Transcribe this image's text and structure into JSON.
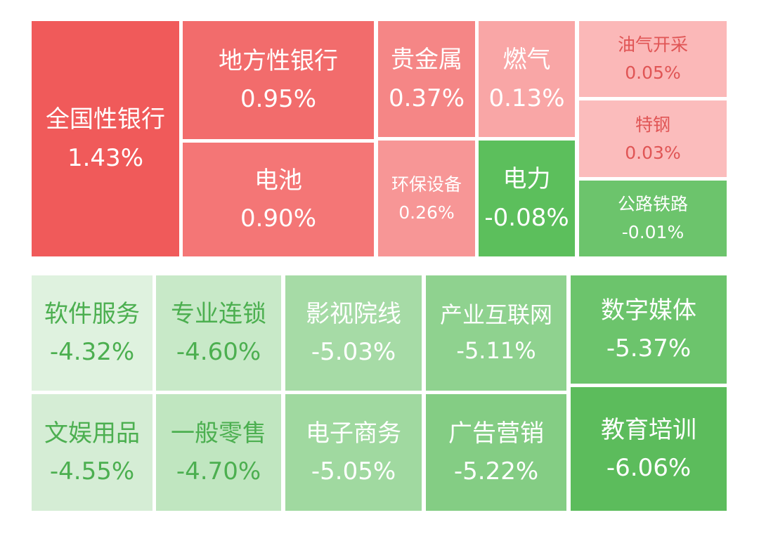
{
  "tiles": [
    {
      "name": "全国性银行",
      "change": "1.43%"
    },
    {
      "name": "地方性银行",
      "change": "0.95%"
    },
    {
      "name": "电池",
      "change": "0.90%"
    },
    {
      "name": "贵金属",
      "change": "0.37%"
    },
    {
      "name": "环保设备",
      "change": "0.26%"
    },
    {
      "name": "燃气",
      "change": "0.13%"
    },
    {
      "name": "电力",
      "change": "-0.08%"
    },
    {
      "name": "油气开采",
      "change": "0.05%"
    },
    {
      "name": "特钢",
      "change": "0.03%"
    },
    {
      "name": "公路铁路",
      "change": "-0.01%"
    },
    {
      "name": "软件服务",
      "change": "-4.32%"
    },
    {
      "name": "专业连锁",
      "change": "-4.60%"
    },
    {
      "name": "影视院线",
      "change": "-5.03%"
    },
    {
      "name": "产业互联网",
      "change": "-5.11%"
    },
    {
      "name": "数字媒体",
      "change": "-5.37%"
    },
    {
      "name": "文娱用品",
      "change": "-4.55%"
    },
    {
      "name": "一般零售",
      "change": "-4.70%"
    },
    {
      "name": "电子商务",
      "change": "-5.05%"
    },
    {
      "name": "广告营销",
      "change": "-5.22%"
    },
    {
      "name": "教育培训",
      "change": "-6.06%"
    }
  ]
}
